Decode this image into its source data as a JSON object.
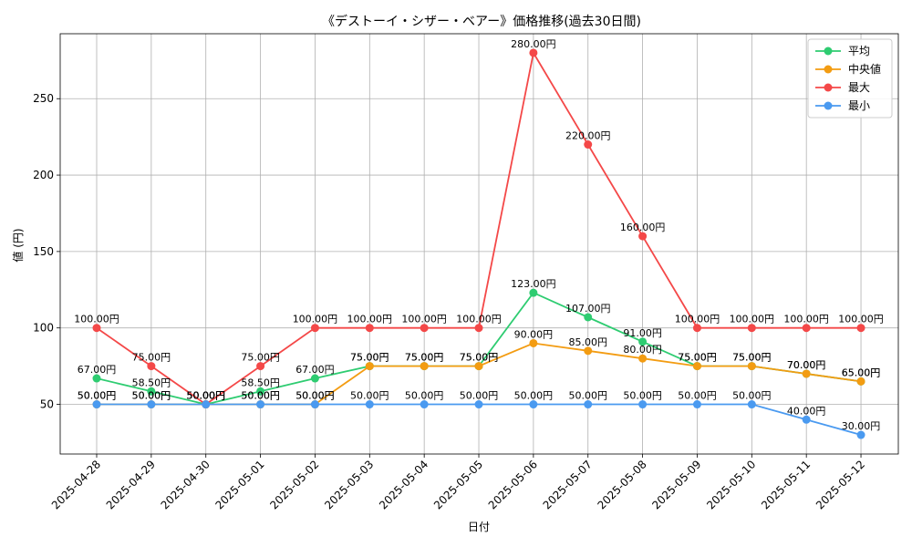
{
  "chart_data": {
    "type": "line",
    "title": "《デストーイ・シザー・ベアー》価格推移(過去30日間)",
    "xlabel": "日付",
    "ylabel": "値 (円)",
    "categories": [
      "2025-04-28",
      "2025-04-29",
      "2025-04-30",
      "2025-05-01",
      "2025-05-02",
      "2025-05-03",
      "2025-05-04",
      "2025-05-05",
      "2025-05-06",
      "2025-05-07",
      "2025-05-08",
      "2025-05-09",
      "2025-05-10",
      "2025-05-11",
      "2025-05-12"
    ],
    "ylim": [
      17.5,
      292.5
    ],
    "yticks": [
      50,
      100,
      150,
      200,
      250
    ],
    "grid": true,
    "legend_position": "top-right",
    "value_suffix": "円",
    "series": [
      {
        "name": "平均",
        "color": "#2ecc71",
        "values": [
          67,
          58.5,
          50,
          58.5,
          67,
          75,
          75,
          75,
          123,
          107,
          91,
          75,
          75,
          70,
          65
        ]
      },
      {
        "name": "中央値",
        "color": "#f39c12",
        "values": [
          50,
          50,
          50,
          50,
          50,
          75,
          75,
          75,
          90,
          85,
          80,
          75,
          75,
          70,
          65
        ]
      },
      {
        "name": "最大",
        "color": "#f44848",
        "values": [
          100,
          75,
          50,
          75,
          100,
          100,
          100,
          100,
          280,
          220,
          160,
          100,
          100,
          100,
          100
        ]
      },
      {
        "name": "最小",
        "color": "#4a9af0",
        "values": [
          50,
          50,
          50,
          50,
          50,
          50,
          50,
          50,
          50,
          50,
          50,
          50,
          50,
          40,
          30
        ]
      }
    ]
  }
}
